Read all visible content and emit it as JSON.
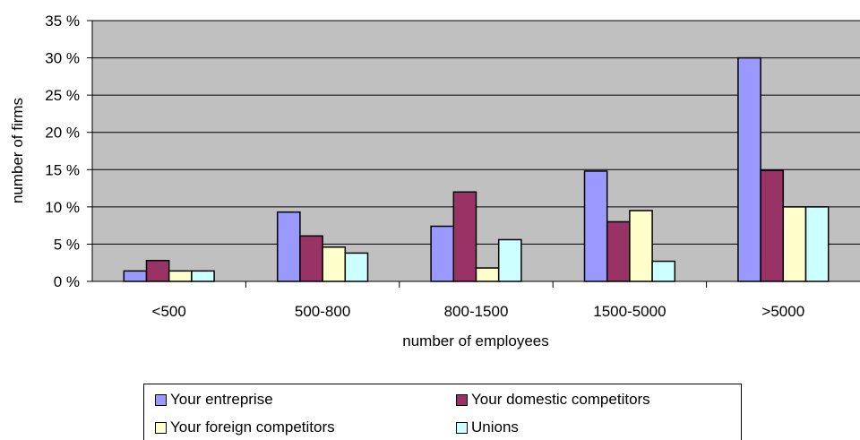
{
  "chart_data": {
    "type": "bar",
    "categories": [
      "<500",
      "500-800",
      "800-1500",
      "1500-5000",
      ">5000"
    ],
    "series": [
      {
        "name": "Your entreprise",
        "values": [
          1.4,
          9.3,
          7.4,
          14.8,
          30.0
        ],
        "color": "#9999ff"
      },
      {
        "name": "Your domestic competitors",
        "values": [
          2.8,
          6.1,
          12.0,
          8.0,
          14.9
        ],
        "color": "#993366"
      },
      {
        "name": "Your foreign competitors",
        "values": [
          1.4,
          4.6,
          1.8,
          9.5,
          10.0
        ],
        "color": "#ffffcc"
      },
      {
        "name": "Unions",
        "values": [
          1.4,
          3.8,
          5.6,
          2.7,
          10.0
        ],
        "color": "#ccffff"
      }
    ],
    "xlabel": "number of employees",
    "ylabel": "number of firms",
    "ylim": [
      0,
      35
    ],
    "yticks": [
      {
        "value": 0,
        "label": "0 %"
      },
      {
        "value": 5,
        "label": "5 %"
      },
      {
        "value": 10,
        "label": "10 %"
      },
      {
        "value": 15,
        "label": "15 %"
      },
      {
        "value": 20,
        "label": "20 %"
      },
      {
        "value": 25,
        "label": "25 %"
      },
      {
        "value": 30,
        "label": "30 %"
      },
      {
        "value": 35,
        "label": "35 %"
      }
    ],
    "plot_background": "#c0c0c0",
    "grid": true,
    "legend_position": "bottom"
  }
}
